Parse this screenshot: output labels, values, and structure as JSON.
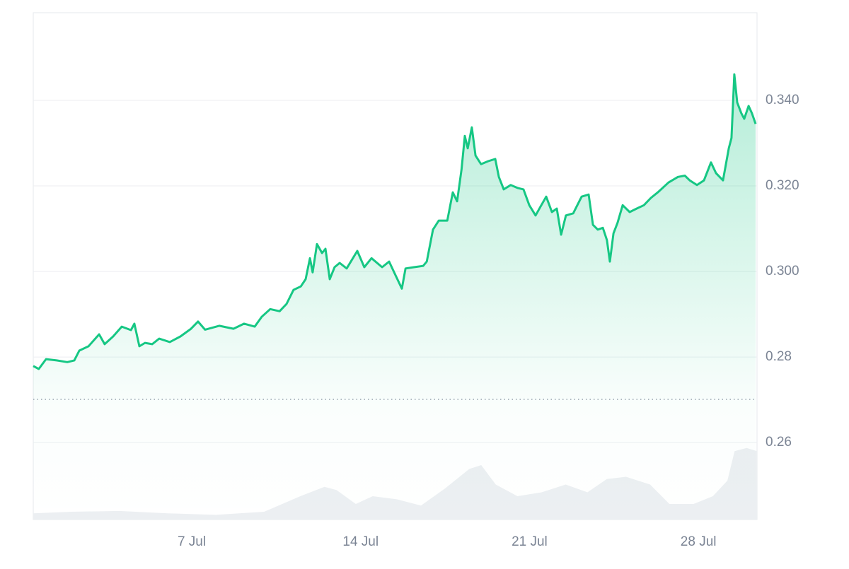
{
  "chart_data": {
    "type": "line",
    "x": [
      0.43,
      0.66,
      0.96,
      1.4,
      1.84,
      2.13,
      2.34,
      2.72,
      3.16,
      3.39,
      3.74,
      4.1,
      4.48,
      4.62,
      4.83,
      5.06,
      5.36,
      5.65,
      6.09,
      6.53,
      6.97,
      7.26,
      7.55,
      8.14,
      8.73,
      9.17,
      9.61,
      9.9,
      10.25,
      10.64,
      10.93,
      11.22,
      11.52,
      11.72,
      11.9,
      12.01,
      12.19,
      12.4,
      12.54,
      12.72,
      12.92,
      13.13,
      13.42,
      13.86,
      14.15,
      14.45,
      14.89,
      15.18,
      15.48,
      15.71,
      15.86,
      16.21,
      16.59,
      16.74,
      17.0,
      17.24,
      17.59,
      17.82,
      18.0,
      18.18,
      18.32,
      18.44,
      18.61,
      18.76,
      18.99,
      19.29,
      19.58,
      19.73,
      19.93,
      20.22,
      20.52,
      20.75,
      20.99,
      21.25,
      21.49,
      21.69,
      21.93,
      22.13,
      22.31,
      22.51,
      22.81,
      23.16,
      23.45,
      23.63,
      23.83,
      24.04,
      24.21,
      24.33,
      24.48,
      24.65,
      24.86,
      25.15,
      25.44,
      25.74,
      26.03,
      26.32,
      26.76,
      27.15,
      27.44,
      27.64,
      27.94,
      28.23,
      28.52,
      28.73,
      29.02,
      29.26,
      29.37,
      29.49,
      29.61,
      29.78,
      29.9,
      30.08,
      30.22,
      30.37
    ],
    "values": [
      0.2779,
      0.2772,
      0.2795,
      0.2792,
      0.2788,
      0.2792,
      0.2815,
      0.2825,
      0.2853,
      0.283,
      0.2848,
      0.2871,
      0.2863,
      0.2878,
      0.2825,
      0.2833,
      0.283,
      0.2843,
      0.2835,
      0.2848,
      0.2866,
      0.2883,
      0.2864,
      0.2873,
      0.2866,
      0.2878,
      0.2871,
      0.2894,
      0.2912,
      0.2907,
      0.2924,
      0.2957,
      0.2965,
      0.2982,
      0.3031,
      0.2998,
      0.3064,
      0.3043,
      0.3053,
      0.2982,
      0.301,
      0.302,
      0.3007,
      0.3048,
      0.301,
      0.3031,
      0.301,
      0.3023,
      0.2987,
      0.296,
      0.3007,
      0.301,
      0.3013,
      0.3023,
      0.3098,
      0.3119,
      0.3119,
      0.3185,
      0.3164,
      0.3238,
      0.3317,
      0.3288,
      0.3337,
      0.3271,
      0.3251,
      0.3258,
      0.3263,
      0.3221,
      0.3192,
      0.3202,
      0.3195,
      0.3192,
      0.3155,
      0.3131,
      0.3155,
      0.3175,
      0.3139,
      0.3147,
      0.3086,
      0.3131,
      0.3136,
      0.3175,
      0.318,
      0.3109,
      0.3098,
      0.3102,
      0.3073,
      0.3023,
      0.3089,
      0.3114,
      0.3155,
      0.3139,
      0.3147,
      0.3155,
      0.3172,
      0.3185,
      0.3208,
      0.3221,
      0.3224,
      0.3213,
      0.3202,
      0.3213,
      0.3255,
      0.323,
      0.3213,
      0.3288,
      0.3312,
      0.3461,
      0.3395,
      0.337,
      0.3357,
      0.3387,
      0.337,
      0.3345
    ],
    "color": "#16c784",
    "volume_x": [
      0.43,
      2,
      4,
      6,
      8,
      10,
      11.5,
      12.5,
      13,
      13.8,
      14.5,
      15.5,
      16.5,
      17.5,
      18.5,
      19,
      19.6,
      20.5,
      21.5,
      22.5,
      23.4,
      24.2,
      25,
      26,
      26.8,
      27.8,
      28.6,
      29.2,
      29.5,
      30,
      30.43
    ],
    "volume_values": [
      8,
      10,
      11,
      8,
      6,
      10,
      30,
      42,
      38,
      20,
      30,
      26,
      18,
      40,
      65,
      70,
      45,
      30,
      35,
      45,
      35,
      52,
      55,
      45,
      20,
      20,
      30,
      50,
      88,
      92,
      88
    ],
    "volume_color": "#eceff2",
    "volume_lim": [
      0,
      100
    ],
    "reference_line": 0.2701,
    "xlim": [
      0.43,
      30.43
    ],
    "ylim": [
      0.242,
      0.3605
    ],
    "xticks": [
      {
        "value": 7,
        "label": "7 Jul"
      },
      {
        "value": 14,
        "label": "14 Jul"
      },
      {
        "value": 21,
        "label": "21 Jul"
      },
      {
        "value": 28,
        "label": "28 Jul"
      }
    ],
    "yticks": [
      0.26,
      0.28,
      {
        "value": 0.3,
        "label": "0.300"
      },
      {
        "value": 0.32,
        "label": "0.320"
      },
      {
        "value": 0.34,
        "label": "0.340"
      }
    ],
    "grid": true
  }
}
